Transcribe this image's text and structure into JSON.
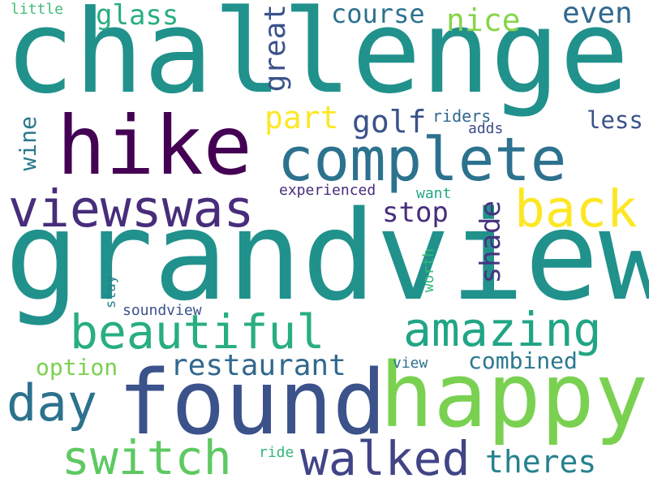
{
  "words": [
    {
      "text": "challenge",
      "color": "#21918c"
    },
    {
      "text": "grandview",
      "color": "#21918c"
    },
    {
      "text": "hike",
      "color": "#440154"
    },
    {
      "text": "complete",
      "color": "#2c728e"
    },
    {
      "text": "found",
      "color": "#3b528b"
    },
    {
      "text": "happy",
      "color": "#7ad151"
    },
    {
      "text": "viewswas",
      "color": "#472d7b"
    },
    {
      "text": "back",
      "color": "#fde725"
    },
    {
      "text": "beautiful",
      "color": "#28ae80"
    },
    {
      "text": "amazing",
      "color": "#21a585"
    },
    {
      "text": "day",
      "color": "#2c728e"
    },
    {
      "text": "switch",
      "color": "#5ec962"
    },
    {
      "text": "walked",
      "color": "#414487"
    },
    {
      "text": "restaurant",
      "color": "#31688e"
    },
    {
      "text": "theres",
      "color": "#26828e"
    },
    {
      "text": "combined",
      "color": "#2a788e"
    },
    {
      "text": "option",
      "color": "#7ad151"
    },
    {
      "text": "glass",
      "color": "#28ae80"
    },
    {
      "text": "course",
      "color": "#2c728e"
    },
    {
      "text": "nice",
      "color": "#86d549"
    },
    {
      "text": "even",
      "color": "#31688e"
    },
    {
      "text": "great",
      "color": "#3b528b"
    },
    {
      "text": "part",
      "color": "#fde725"
    },
    {
      "text": "golf",
      "color": "#3b528b"
    },
    {
      "text": "riders",
      "color": "#31688e"
    },
    {
      "text": "adds",
      "color": "#3e4a89"
    },
    {
      "text": "less",
      "color": "#3b528b"
    },
    {
      "text": "wine",
      "color": "#2a788e"
    },
    {
      "text": "stop",
      "color": "#472d7b"
    },
    {
      "text": "shade",
      "color": "#46337f"
    },
    {
      "text": "experienced",
      "color": "#472d7b"
    },
    {
      "text": "want",
      "color": "#22a884"
    },
    {
      "text": "worth",
      "color": "#35b779"
    },
    {
      "text": "stay",
      "color": "#26828e"
    },
    {
      "text": "soundview",
      "color": "#3b528b"
    },
    {
      "text": "view",
      "color": "#2c728e"
    },
    {
      "text": "ride",
      "color": "#35b779"
    },
    {
      "text": "little",
      "color": "#3fbc73"
    }
  ]
}
